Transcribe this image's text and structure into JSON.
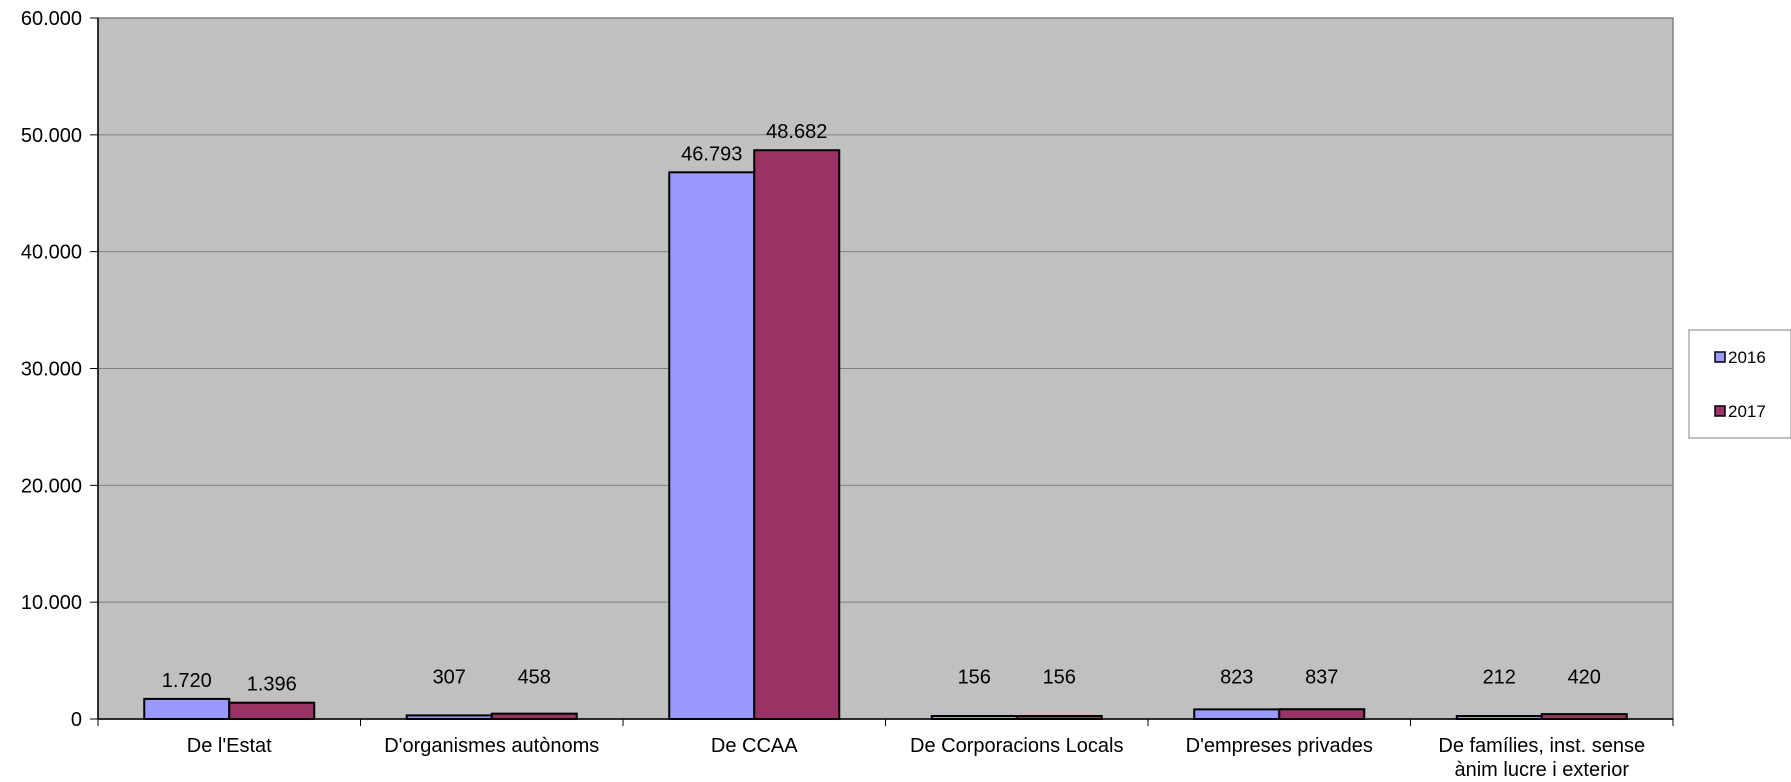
{
  "chart_data": {
    "type": "bar",
    "title": "",
    "xlabel": "",
    "ylabel": "",
    "ylim": [
      0,
      60000
    ],
    "yticks": [
      0,
      10000,
      20000,
      30000,
      40000,
      50000,
      60000
    ],
    "ytick_labels": [
      "0",
      "10.000",
      "20.000",
      "30.000",
      "40.000",
      "50.000",
      "60.000"
    ],
    "grid": true,
    "legend_position": "right",
    "categories": [
      [
        "De l'Estat"
      ],
      [
        "D'organismes autònoms"
      ],
      [
        "De CCAA"
      ],
      [
        "De Corporacions Locals"
      ],
      [
        "D'empreses privades"
      ],
      [
        "De famílies, inst. sense",
        "ànim lucre i exterior"
      ]
    ],
    "series": [
      {
        "name": "2016",
        "color": "#9999ff",
        "values": [
          1720,
          307,
          46793,
          156,
          823,
          212
        ],
        "labels": [
          "1.720",
          "307",
          "46.793",
          "156",
          "823",
          "212"
        ]
      },
      {
        "name": "2017",
        "color": "#993366",
        "values": [
          1396,
          458,
          48682,
          156,
          837,
          420
        ],
        "labels": [
          "1.396",
          "458",
          "48.682",
          "156",
          "837",
          "420"
        ]
      }
    ],
    "plot_background": "#c0c0c0",
    "grid_color": "#808080"
  }
}
